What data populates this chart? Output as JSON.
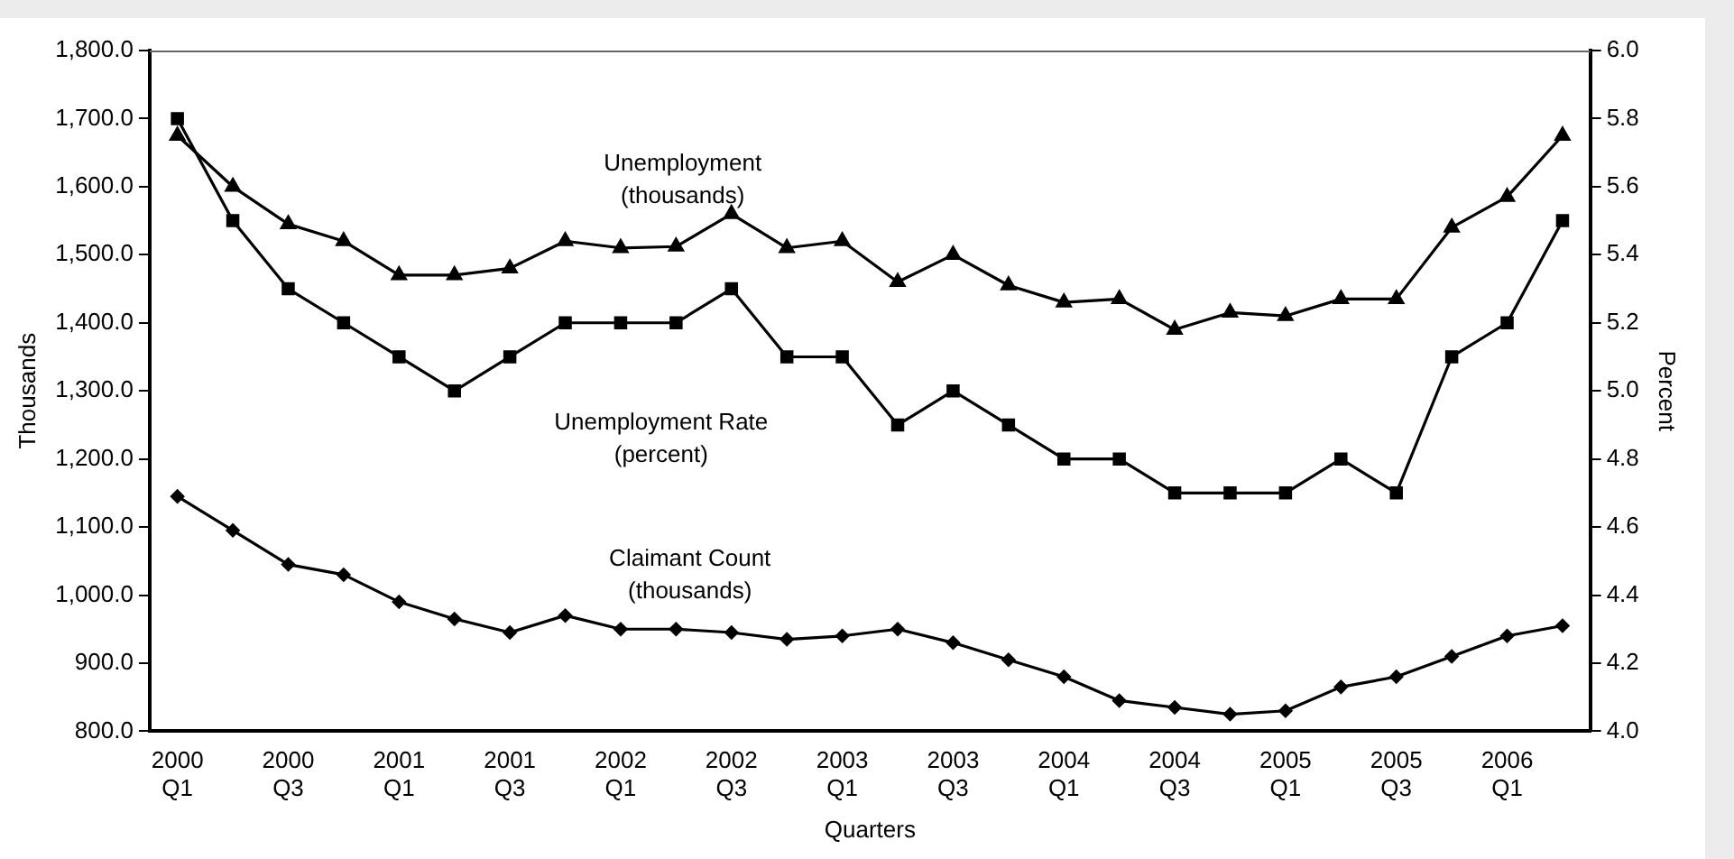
{
  "chart_data": {
    "type": "line",
    "xlabel": "Quarters",
    "ylabel": "Thousands",
    "y2label": "Percent",
    "categories": [
      "2000 Q1",
      null,
      "2000 Q3",
      null,
      "2001 Q1",
      null,
      "2001 Q3",
      null,
      "2002 Q1",
      null,
      "2002 Q3",
      null,
      "2003 Q1",
      null,
      "2003 Q3",
      null,
      "2004 Q1",
      null,
      "2004 Q3",
      null,
      "2005 Q1",
      null,
      "2005 Q3",
      null,
      "2006 Q1",
      null
    ],
    "series": [
      {
        "name": "Unemployment (thousands)",
        "color": "#000000",
        "marker": "triangle",
        "values": [
          1675,
          1600,
          1545,
          1520,
          1470,
          1470,
          1480,
          1520,
          1510,
          1512,
          1560,
          1510,
          1520,
          1460,
          1500,
          1455,
          1430,
          1435,
          1390,
          1415,
          1410,
          1435,
          1435,
          1540,
          1585,
          1675
        ]
      },
      {
        "name": "Unemployment Rate (percent)",
        "color": "#000000",
        "marker": "square",
        "axis": "y2",
        "values": [
          5.8,
          5.5,
          5.3,
          5.2,
          5.1,
          5.0,
          5.1,
          5.2,
          5.2,
          5.2,
          5.3,
          5.1,
          5.1,
          4.9,
          5.0,
          4.9,
          4.8,
          4.8,
          4.7,
          4.7,
          4.7,
          4.8,
          4.7,
          5.1,
          5.2,
          5.5
        ]
      },
      {
        "name": "Claimant Count (thousands)",
        "color": "#000000",
        "marker": "diamond",
        "values": [
          1145,
          1095,
          1045,
          1030,
          990,
          965,
          945,
          970,
          950,
          950,
          945,
          935,
          940,
          950,
          930,
          905,
          880,
          845,
          835,
          825,
          830,
          865,
          880,
          910,
          940,
          955
        ]
      }
    ],
    "ylim": [
      800,
      1800
    ],
    "yticks": [
      {
        "value": 800,
        "label": "800.0"
      },
      {
        "value": 900,
        "label": "900.0"
      },
      {
        "value": 1000,
        "label": "1,000.0"
      },
      {
        "value": 1100,
        "label": "1,100.0"
      },
      {
        "value": 1200,
        "label": "1,200.0"
      },
      {
        "value": 1300,
        "label": "1,300.0"
      },
      {
        "value": 1400,
        "label": "1,400.0"
      },
      {
        "value": 1500,
        "label": "1,500.0"
      },
      {
        "value": 1600,
        "label": "1,600.0"
      },
      {
        "value": 1700,
        "label": "1,700.0"
      },
      {
        "value": 1800,
        "label": "1,800.0"
      }
    ],
    "y2lim": [
      4,
      6
    ],
    "y2ticks": [
      {
        "value": 4,
        "label": "4.0"
      },
      {
        "value": 4.2,
        "label": "4.2"
      },
      {
        "value": 4.4,
        "label": "4.4"
      },
      {
        "value": 4.6,
        "label": "4.6"
      },
      {
        "value": 4.8,
        "label": "4.8"
      },
      {
        "value": 5,
        "label": "5.0"
      },
      {
        "value": 5.2,
        "label": "5.2"
      },
      {
        "value": 5.4,
        "label": "5.4"
      },
      {
        "value": 5.6,
        "label": "5.6"
      },
      {
        "value": 5.8,
        "label": "5.8"
      },
      {
        "value": 6,
        "label": "6.0"
      }
    ],
    "grid": false,
    "legend": false
  }
}
